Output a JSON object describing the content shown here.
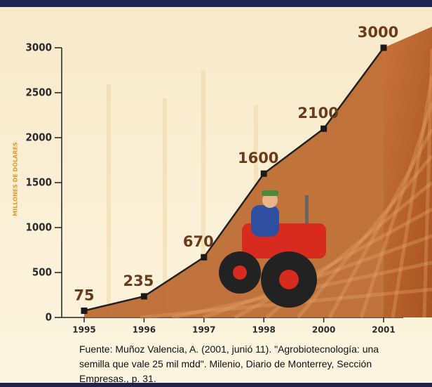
{
  "chart_data": {
    "type": "area",
    "y_label": "MILLONES DE DÓLARES",
    "categories": [
      "1995",
      "1996",
      "1997",
      "1998",
      "2000",
      "2001"
    ],
    "values": [
      75,
      235,
      670,
      1600,
      2100,
      3000
    ],
    "color": "#b9652a",
    "line_color": "#222222",
    "ylim": [
      0,
      3000
    ],
    "yticks": [
      0,
      500,
      1000,
      1500,
      2000,
      2500,
      3000
    ],
    "source": "Fuente: Muñoz Valencia, A. (2001, junió 11). \"Agrobiotecnología: una semilla que vale 25 mil mdd\". Milenio, Diario de Monterrey, Sección Empresas., p. 31."
  }
}
